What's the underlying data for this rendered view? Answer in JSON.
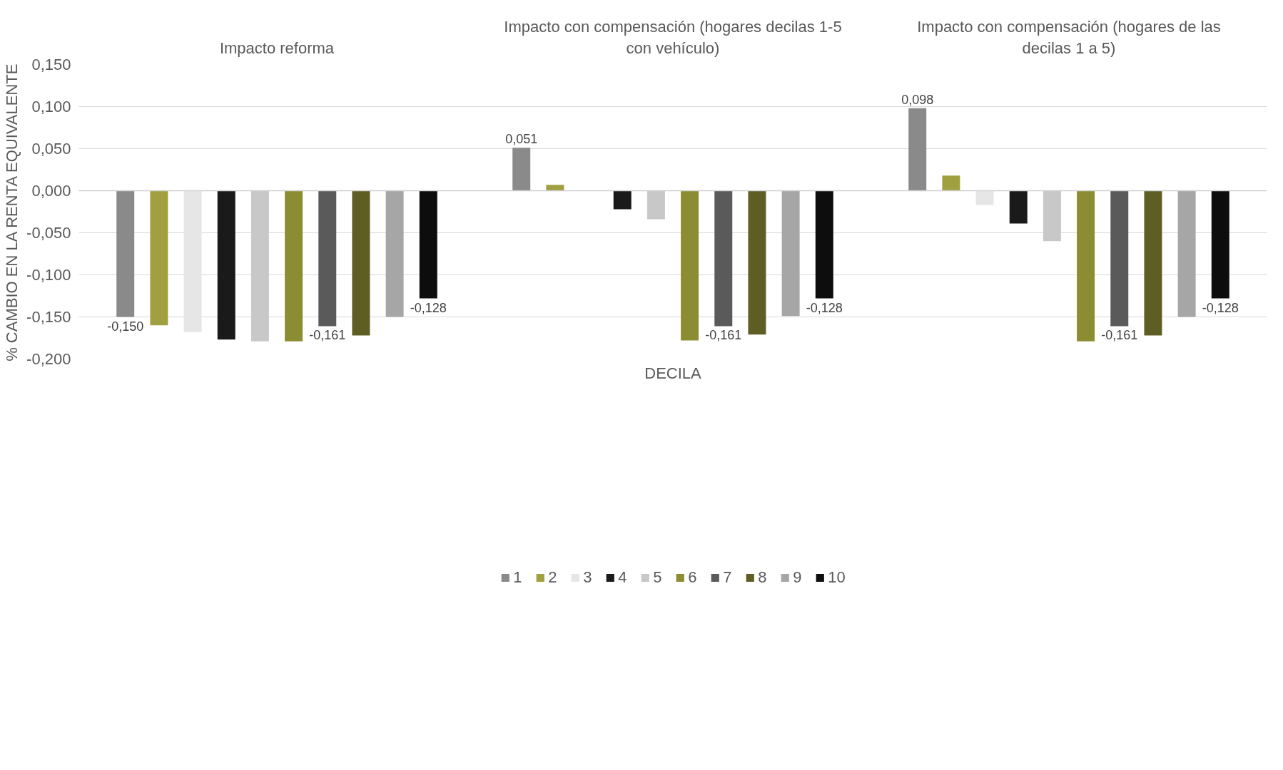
{
  "chart_data": {
    "type": "bar",
    "xlabel": "DECILA",
    "ylabel": "% CAMBIO EN LA RENTA EQUIVALENTE",
    "categories": [
      "Impacto reforma",
      "Impacto con compensación (hogares decilas 1-5 con vehículo)",
      "Impacto con compensación (hogares de las decilas 1 a 5)"
    ],
    "series": [
      {
        "name": "1",
        "color": "#8a8a8a",
        "values": [
          -0.15,
          0.051,
          0.098
        ],
        "value_labels": [
          "-0,150",
          "0,051",
          "0,098"
        ]
      },
      {
        "name": "2",
        "color": "#a0a040",
        "values": [
          -0.16,
          0.007,
          0.018
        ]
      },
      {
        "name": "3",
        "color": "#e6e6e6",
        "values": [
          -0.168,
          null,
          -0.017
        ]
      },
      {
        "name": "4",
        "color": "#1a1a1a",
        "values": [
          -0.177,
          -0.022,
          -0.039
        ]
      },
      {
        "name": "5",
        "color": "#c8c8c8",
        "values": [
          -0.179,
          -0.034,
          -0.06
        ]
      },
      {
        "name": "6",
        "color": "#8c8c32",
        "values": [
          -0.179,
          -0.178,
          -0.179
        ]
      },
      {
        "name": "7",
        "color": "#5a5a5a",
        "values": [
          -0.161,
          -0.161,
          -0.161
        ],
        "value_labels": [
          "-0,161",
          "-0,161",
          "-0,161"
        ]
      },
      {
        "name": "8",
        "color": "#5e5e24",
        "values": [
          -0.172,
          -0.171,
          -0.172
        ]
      },
      {
        "name": "9",
        "color": "#a6a6a6",
        "values": [
          -0.15,
          -0.149,
          -0.15
        ]
      },
      {
        "name": "10",
        "color": "#0d0d0d",
        "values": [
          -0.128,
          -0.128,
          -0.128
        ],
        "value_labels": [
          "-0,128",
          "-0,128",
          "-0,128"
        ]
      }
    ],
    "ylim": [
      -0.2,
      0.15
    ],
    "yticks": [
      {
        "value": -0.2,
        "label": "-0,200"
      },
      {
        "value": -0.15,
        "label": "-0,150"
      },
      {
        "value": -0.1,
        "label": "-0,100"
      },
      {
        "value": -0.05,
        "label": "-0,050"
      },
      {
        "value": 0,
        "label": "0,000"
      },
      {
        "value": 0.05,
        "label": "0,050"
      },
      {
        "value": 0.1,
        "label": "0,100"
      },
      {
        "value": 0.15,
        "label": "0,150"
      }
    ],
    "grid": "y",
    "legend": "bottom"
  }
}
